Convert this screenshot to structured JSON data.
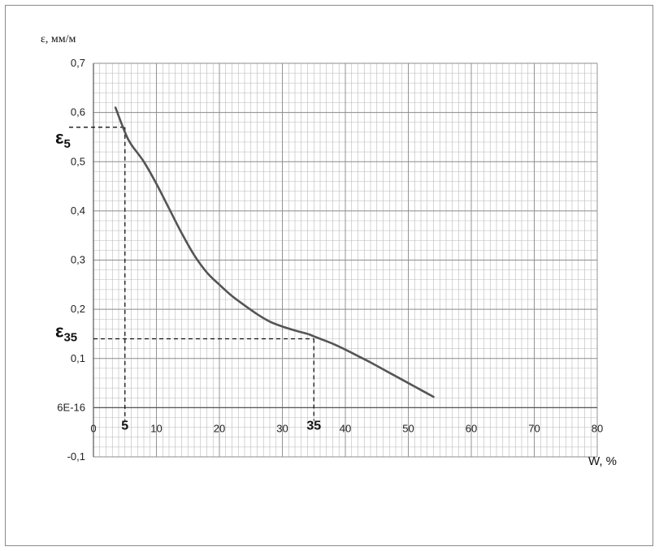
{
  "chart_data": {
    "type": "line",
    "ylabel": "ε, мм/м",
    "xlabel": "W, %",
    "xlim": [
      0,
      80
    ],
    "ylim": [
      -0.1,
      0.7
    ],
    "x_ticks": [
      0,
      10,
      20,
      30,
      40,
      50,
      60,
      70,
      80
    ],
    "x_tick_labels": [
      "0",
      "10",
      "20",
      "30",
      "40",
      "50",
      "60",
      "70",
      "80"
    ],
    "y_ticks": [
      0.7,
      0.6,
      0.5,
      0.4,
      0.3,
      0.2,
      0.1,
      0,
      -0.1
    ],
    "y_tick_labels": [
      "0,7",
      "0,6",
      "0,5",
      "0,4",
      "0,3",
      "0,2",
      "0,1",
      "6E-16",
      "-0,1"
    ],
    "grid": true,
    "grid_minor_x": 1,
    "grid_minor_y": 0.02,
    "series": [
      {
        "color": "#555555",
        "x": [
          3.5,
          5,
          6,
          8,
          10,
          12,
          14,
          16,
          18,
          20,
          22,
          24,
          26,
          28,
          30,
          32,
          34,
          35,
          36,
          38,
          40,
          42,
          44,
          46,
          48,
          50,
          52,
          54
        ],
        "y": [
          0.61,
          0.56,
          0.535,
          0.5,
          0.455,
          0.405,
          0.355,
          0.31,
          0.275,
          0.25,
          0.227,
          0.208,
          0.19,
          0.175,
          0.165,
          0.157,
          0.15,
          0.145,
          0.14,
          0.13,
          0.118,
          0.105,
          0.092,
          0.078,
          0.064,
          0.05,
          0.036,
          0.022
        ]
      }
    ],
    "markers": [
      {
        "label": "5",
        "symbol": "ε",
        "sub": "5",
        "x": 5,
        "y": 0.57
      },
      {
        "label": "35",
        "symbol": "ε",
        "sub": "35",
        "x": 35,
        "y": 0.14
      }
    ]
  }
}
